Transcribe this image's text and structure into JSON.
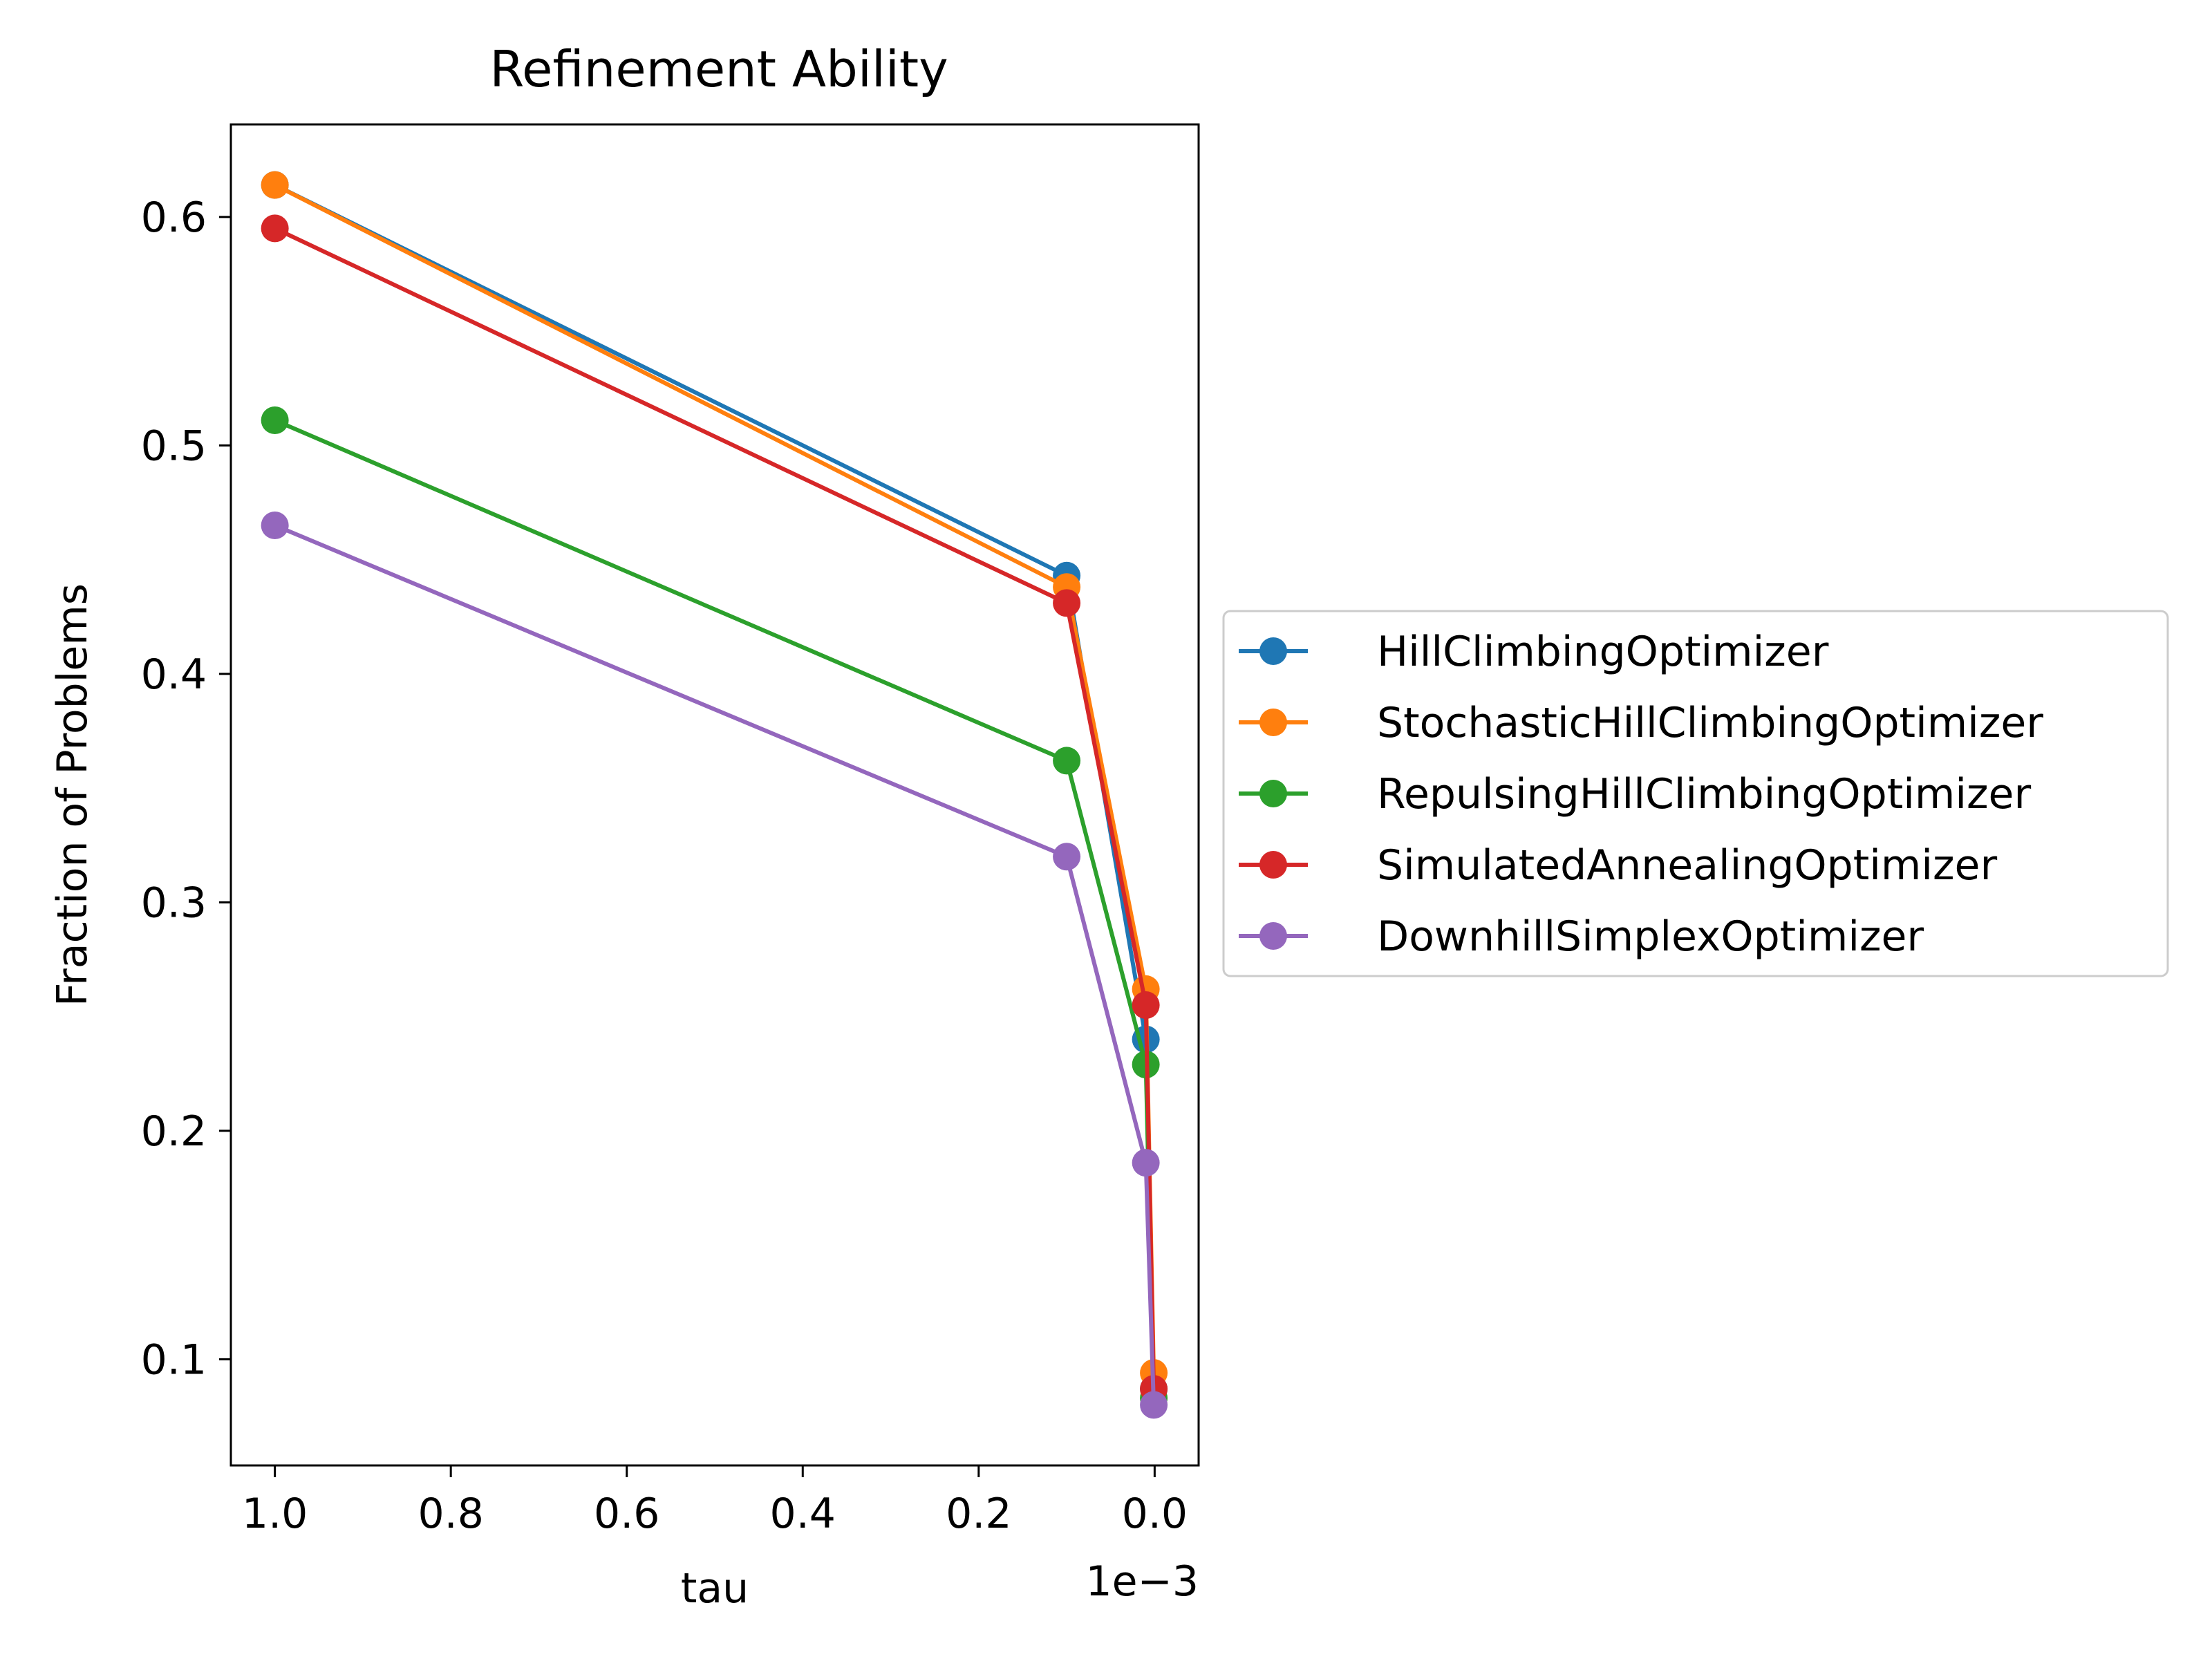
{
  "chart_data": {
    "type": "line",
    "title": "Refinement Ability",
    "xlabel": "tau",
    "ylabel": "Fraction of Problems",
    "x_offset_text": "1e−3",
    "xlim": [
      1.05,
      -0.05
    ],
    "ylim": [
      0.0535,
      0.6405
    ],
    "xticks": [
      1.0,
      0.8,
      0.6,
      0.4,
      0.2,
      0.0
    ],
    "xtick_labels": [
      "1.0",
      "0.8",
      "0.6",
      "0.4",
      "0.2",
      "0.0"
    ],
    "yticks": [
      0.1,
      0.2,
      0.3,
      0.4,
      0.5,
      0.6
    ],
    "ytick_labels": [
      "0.1",
      "0.2",
      "0.3",
      "0.4",
      "0.5",
      "0.6"
    ],
    "grid": false,
    "legend_position": "outside-right",
    "x": [
      1.0,
      0.1,
      0.01,
      0.001
    ],
    "series": [
      {
        "name": "HillClimbingOptimizer",
        "color": "#1f77b4",
        "marker": "circle",
        "values": [
          0.614,
          0.443,
          0.24,
          0.087
        ]
      },
      {
        "name": "StochasticHillClimbingOptimizer",
        "color": "#ff7f0e",
        "marker": "circle",
        "values": [
          0.614,
          0.438,
          0.262,
          0.094
        ]
      },
      {
        "name": "RepulsingHillClimbingOptimizer",
        "color": "#2ca02c",
        "marker": "circle",
        "values": [
          0.511,
          0.362,
          0.229,
          0.083
        ]
      },
      {
        "name": "SimulatedAnnealingOptimizer",
        "color": "#d62728",
        "marker": "circle",
        "values": [
          0.595,
          0.431,
          0.255,
          0.087
        ]
      },
      {
        "name": "DownhillSimplexOptimizer",
        "color": "#9467bd",
        "marker": "circle",
        "values": [
          0.465,
          0.32,
          0.186,
          0.08
        ]
      }
    ]
  }
}
